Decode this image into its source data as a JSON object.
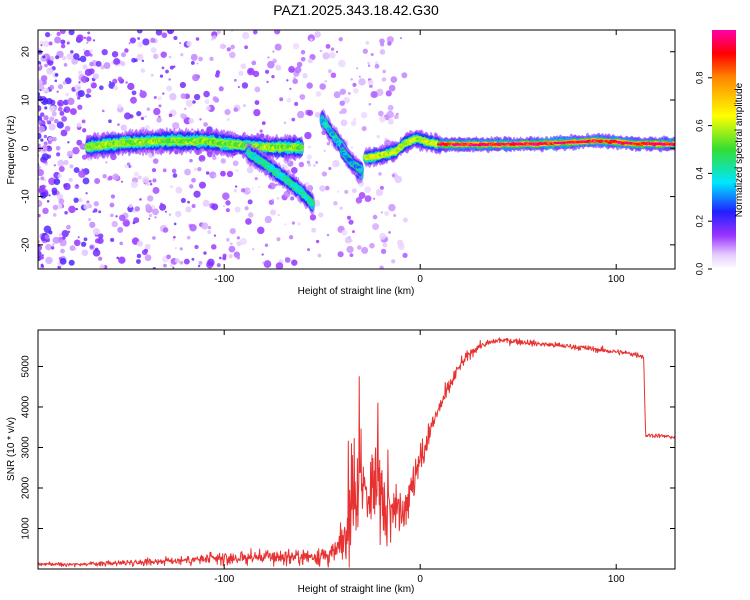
{
  "title": "PAZ1.2025.343.18.42.G30",
  "chart_data": [
    {
      "type": "heatmap",
      "panel": "spectrogram",
      "xlabel": "Height of straight line (km)",
      "ylabel": "Frequency (Hz)",
      "xlim": [
        -195,
        130
      ],
      "ylim": [
        -25,
        24.5
      ],
      "xticks": [
        -100,
        0,
        100
      ],
      "xtick_labels": [
        "-100",
        "0",
        "100"
      ],
      "yticks": [
        -20,
        -10,
        0,
        10,
        20
      ],
      "ytick_labels": [
        "-20",
        "-10",
        "0",
        "10",
        "20"
      ],
      "colorbar": {
        "label": "Normalized spectral amplitude",
        "range": [
          0,
          1
        ],
        "ticks": [
          0,
          0.2,
          0.4,
          0.6,
          0.8
        ],
        "tick_labels": [
          "0.0",
          "0.2",
          "0.4",
          "0.6",
          "0.8"
        ]
      },
      "ridges": [
        {
          "name": "main-band",
          "points": [
            [
              -170,
              0.3
            ],
            [
              -150,
              1.2
            ],
            [
              -130,
              1.5
            ],
            [
              -110,
              1.5
            ],
            [
              -95,
              0.8
            ],
            [
              -80,
              0.2
            ],
            [
              -70,
              0.2
            ],
            [
              -60,
              0.2
            ]
          ],
          "amplitude": 0.55,
          "width_hz": 1.8
        },
        {
          "name": "descending-branch",
          "points": [
            [
              -88,
              -1.0
            ],
            [
              -78,
              -3.5
            ],
            [
              -70,
              -6.0
            ],
            [
              -62,
              -8.5
            ],
            [
              -55,
              -11.5
            ]
          ],
          "amplitude": 0.4,
          "width_hz": 1.6
        },
        {
          "name": "upper-branch",
          "points": [
            [
              -50,
              6.0
            ],
            [
              -45,
              3.0
            ],
            [
              -40,
              0.5
            ],
            [
              -35,
              -3.0
            ],
            [
              -30,
              -5.5
            ]
          ],
          "amplitude": 0.35,
          "width_hz": 1.6
        },
        {
          "name": "mid-branch",
          "points": [
            [
              -40,
              -0.5
            ],
            [
              -35,
              -3.0
            ],
            [
              -30,
              -4.5
            ]
          ],
          "amplitude": 0.3,
          "width_hz": 1.5
        },
        {
          "name": "transition",
          "points": [
            [
              -28,
              -2.0
            ],
            [
              -20,
              -1.5
            ],
            [
              -12,
              -0.5
            ],
            [
              -8,
              1.0
            ],
            [
              -2,
              2.0
            ],
            [
              5,
              1.2
            ],
            [
              10,
              0.8
            ]
          ],
          "amplitude": 0.6,
          "width_hz": 1.4
        },
        {
          "name": "stable-band",
          "points": [
            [
              10,
              0.8
            ],
            [
              40,
              0.8
            ],
            [
              60,
              0.9
            ],
            [
              80,
              1.3
            ],
            [
              90,
              1.6
            ],
            [
              100,
              1.3
            ],
            [
              110,
              0.9
            ],
            [
              130,
              0.9
            ]
          ],
          "amplitude": 0.95,
          "width_hz": 1.0
        }
      ]
    },
    {
      "type": "line",
      "panel": "snr",
      "xlabel": "Height of straight line (km)",
      "ylabel": "SNR (10 * v/v)",
      "xlim": [
        -195,
        130
      ],
      "ylim": [
        0,
        5900
      ],
      "xticks": [
        -100,
        0,
        100
      ],
      "xtick_labels": [
        "-100",
        "0",
        "100"
      ],
      "yticks": [
        1000,
        2000,
        3000,
        4000,
        5000
      ],
      "ytick_labels": [
        "1000",
        "2000",
        "3000",
        "4000",
        "5000"
      ],
      "series": [
        {
          "name": "SNR",
          "color": "#e83232",
          "envelope": {
            "x": [
              -195,
              -170,
              -150,
              -120,
              -100,
              -80,
              -60,
              -45,
              -38,
              -35,
              -30,
              -25,
              -20,
              -15,
              -10,
              -5,
              0,
              5,
              10,
              15,
              20,
              25,
              30,
              40,
              50,
              60,
              70,
              80,
              90,
              100,
              105,
              110,
              114,
              115,
              120,
              130
            ],
            "mean": [
              120,
              120,
              160,
              220,
              250,
              300,
              300,
              350,
              700,
              1500,
              2000,
              1900,
              1800,
              1500,
              1500,
              1800,
              2700,
              3400,
              4000,
              4500,
              5000,
              5300,
              5500,
              5650,
              5620,
              5560,
              5520,
              5480,
              5420,
              5360,
              5330,
              5300,
              5250,
              3300,
              3300,
              3250
            ],
            "spread": [
              60,
              60,
              90,
              150,
              200,
              240,
              260,
              350,
              700,
              1400,
              1800,
              1600,
              1400,
              900,
              700,
              700,
              600,
              450,
              350,
              250,
              200,
              150,
              110,
              100,
              100,
              90,
              90,
              90,
              90,
              90,
              90,
              90,
              90,
              70,
              70,
              60
            ]
          }
        }
      ]
    }
  ]
}
